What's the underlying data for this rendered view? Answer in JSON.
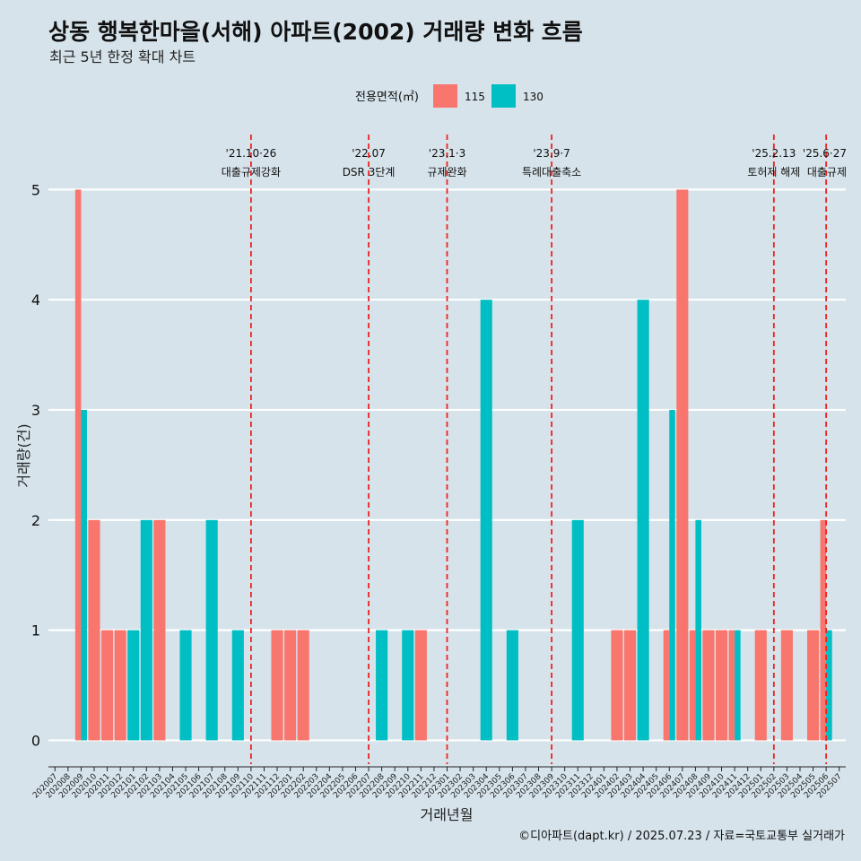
{
  "chart_data": {
    "type": "bar",
    "title": "상동 행복한마을(서해) 아파트(2002) 거래량 변화 흐름",
    "subtitle": "최근 5년 한정 확대 차트",
    "xlabel": "거래년월",
    "ylabel": "거래량(건)",
    "ylim": [
      -0.2,
      5.5
    ],
    "yticks": [
      "0",
      "1",
      "2",
      "3",
      "4",
      "5"
    ],
    "legend": {
      "title": "전용면적(㎡)",
      "position": "top"
    },
    "categories": [
      "202007",
      "202008",
      "202009",
      "202010",
      "202011",
      "202012",
      "202101",
      "202102",
      "202103",
      "202104",
      "202105",
      "202106",
      "202107",
      "202108",
      "202109",
      "202110",
      "202111",
      "202112",
      "202201",
      "202202",
      "202203",
      "202204",
      "202205",
      "202206",
      "202207",
      "202208",
      "202209",
      "202210",
      "202211",
      "202212",
      "202301",
      "202302",
      "202303",
      "202304",
      "202305",
      "202306",
      "202307",
      "202308",
      "202309",
      "202310",
      "202311",
      "202312",
      "202401",
      "202402",
      "202403",
      "202404",
      "202405",
      "202406",
      "202407",
      "202408",
      "202409",
      "202410",
      "202411",
      "202412",
      "202501",
      "202502",
      "202503",
      "202504",
      "202505",
      "202506",
      "202507"
    ],
    "series": [
      {
        "name": "115",
        "color": "#f8766d",
        "values": [
          0,
          0,
          5,
          2,
          1,
          1,
          0,
          0,
          2,
          0,
          0,
          0,
          0,
          0,
          0,
          0,
          0,
          1,
          1,
          1,
          0,
          0,
          0,
          0,
          0,
          0,
          0,
          0,
          1,
          0,
          0,
          0,
          0,
          0,
          0,
          0,
          0,
          0,
          0,
          0,
          0,
          0,
          0,
          1,
          1,
          0,
          0,
          1,
          5,
          1,
          1,
          1,
          1,
          0,
          1,
          0,
          1,
          0,
          1,
          2,
          0
        ]
      },
      {
        "name": "130",
        "color": "#00bfc4",
        "values": [
          0,
          0,
          3,
          0,
          0,
          0,
          1,
          2,
          0,
          0,
          1,
          0,
          2,
          0,
          1,
          0,
          0,
          0,
          0,
          0,
          0,
          0,
          0,
          0,
          0,
          1,
          0,
          1,
          0,
          0,
          0,
          0,
          0,
          4,
          0,
          1,
          0,
          0,
          0,
          0,
          2,
          0,
          0,
          0,
          0,
          4,
          0,
          3,
          0,
          2,
          0,
          0,
          1,
          0,
          0,
          0,
          0,
          0,
          0,
          1,
          0
        ]
      }
    ],
    "annotations": [
      {
        "date": "'21.10·26",
        "label": "대출규제강화",
        "at": "202110"
      },
      {
        "date": "'22.07",
        "label": "DSR 3단계",
        "at": "202207"
      },
      {
        "date": "'23.1·3",
        "label": "규제완화",
        "at": "202301"
      },
      {
        "date": "'23.9·7",
        "label": "특례대출축소",
        "at": "202309"
      },
      {
        "date": "'25.2.13",
        "label": "토허제 해제",
        "at": "202502"
      },
      {
        "date": "'25.6·27",
        "label": "대출규제",
        "at": "202506"
      }
    ],
    "caption": "©디아파트(dapt.kr) / 2025.07.23 / 자료=국토교통부 실거래가",
    "grid": true
  }
}
